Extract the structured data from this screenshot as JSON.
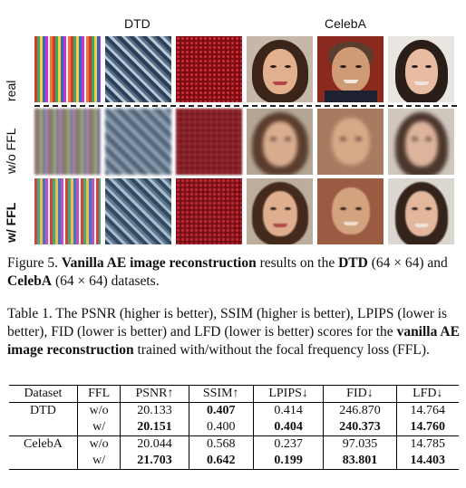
{
  "figure": {
    "col_headers": [
      "DTD",
      "CelebA"
    ],
    "row_labels": [
      "real",
      "w/o FFL",
      "w/ FFL"
    ]
  },
  "figure_caption": {
    "label": "Figure 5.",
    "bold_title": "Vanilla AE image reconstruction",
    "text_1": " results on the ",
    "dtd": "DTD",
    "res_1": " (64 × 64) and ",
    "celeba": "CelebA",
    "text_2": " (64 × 64) datasets."
  },
  "table_caption": {
    "text_1": "Table 1. The PSNR (higher is better), SSIM (higher is better), LPIPS (lower is better), FID (lower is better) and LFD (lower is better) scores for the ",
    "bold": "vanilla AE image reconstruction",
    "text_2": " trained with/without the focal frequency loss (FFL)."
  },
  "table": {
    "headers": [
      "Dataset",
      "FFL",
      "PSNR↑",
      "SSIM↑",
      "LPIPS↓",
      "FID↓",
      "LFD↓"
    ],
    "rows": [
      {
        "dataset": "DTD",
        "ffl": "w/o",
        "psnr": "20.133",
        "ssim": "0.407",
        "lpips": "0.414",
        "fid": "246.870",
        "lfd": "14.764"
      },
      {
        "dataset": "",
        "ffl": "w/",
        "psnr": "20.151",
        "ssim": "0.400",
        "lpips": "0.404",
        "fid": "240.373",
        "lfd": "14.760"
      },
      {
        "dataset": "CelebA",
        "ffl": "w/o",
        "psnr": "20.044",
        "ssim": "0.568",
        "lpips": "0.237",
        "fid": "97.035",
        "lfd": "14.785"
      },
      {
        "dataset": "",
        "ffl": "w/",
        "psnr": "21.703",
        "ssim": "0.642",
        "lpips": "0.199",
        "fid": "83.801",
        "lfd": "14.403"
      }
    ]
  }
}
